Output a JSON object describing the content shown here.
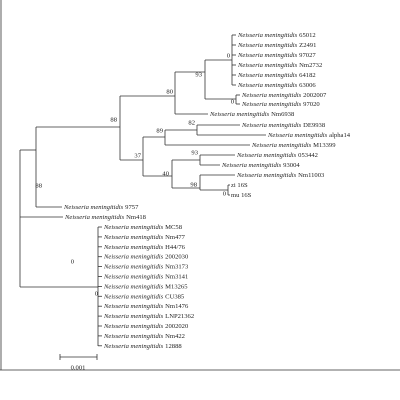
{
  "species": "Neisseria meningitidis",
  "leaves": [
    {
      "strain": "65012"
    },
    {
      "strain": "Z2491"
    },
    {
      "strain": "97027"
    },
    {
      "strain": "Nm2732"
    },
    {
      "strain": "64182"
    },
    {
      "strain": "63006"
    },
    {
      "strain": "2002007"
    },
    {
      "strain": "97020"
    },
    {
      "strain": "Nm6938"
    },
    {
      "strain": "DE9938"
    },
    {
      "strain": "alpha14"
    },
    {
      "strain": "M13399"
    },
    {
      "strain": "053442"
    },
    {
      "strain": "93004"
    },
    {
      "strain": "Nm11003"
    },
    {
      "label": "zi 16S"
    },
    {
      "label": "mu 16S"
    },
    {
      "strain": "9757"
    },
    {
      "strain": "Nm418"
    },
    {
      "strain": "MC58"
    },
    {
      "strain": "Nm477"
    },
    {
      "strain": "H44/76"
    },
    {
      "strain": "2002030"
    },
    {
      "strain": "Nm3173"
    },
    {
      "strain": "Nm3141"
    },
    {
      "strain": "M13265"
    },
    {
      "strain": "CU385"
    },
    {
      "strain": "Nm1476"
    },
    {
      "strain": "LNP21362"
    },
    {
      "strain": "2002020"
    },
    {
      "strain": "Nm422"
    },
    {
      "strain": "12888"
    }
  ],
  "support_values": [
    88,
    93,
    80,
    0,
    0,
    82,
    89,
    37,
    93,
    40,
    98,
    0,
    88,
    0,
    0
  ],
  "scale_bar": "0.001"
}
